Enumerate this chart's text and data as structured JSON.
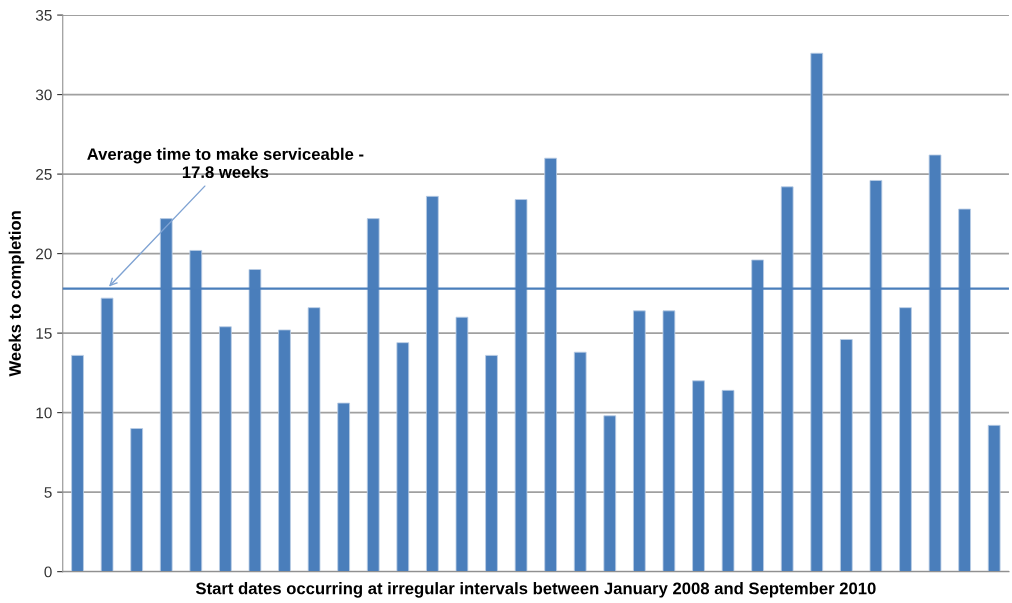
{
  "chart_data": {
    "type": "bar",
    "xlabel": "Start dates occurring at irregular intervals between January 2008 and September 2010",
    "ylabel": "Weeks to completion",
    "categories": [
      null,
      null,
      null,
      null,
      null,
      null,
      null,
      null,
      null,
      null,
      null,
      null,
      null,
      null,
      null,
      null,
      null,
      null,
      null,
      null,
      null,
      null,
      null,
      null,
      null,
      null,
      null,
      null,
      null,
      null,
      null,
      null
    ],
    "values": [
      13.6,
      17.2,
      9.0,
      22.2,
      20.2,
      15.4,
      19.0,
      15.2,
      16.6,
      10.6,
      22.2,
      14.4,
      23.6,
      16.0,
      13.6,
      23.4,
      26.0,
      13.8,
      9.8,
      16.4,
      16.4,
      12.0,
      11.4,
      19.6,
      24.2,
      32.6,
      14.6,
      24.6,
      16.6,
      26.2,
      22.8,
      9.2
    ],
    "color": "#4a7ebb",
    "ylim": [
      0,
      35
    ],
    "yticks": [
      0,
      5,
      10,
      15,
      20,
      25,
      30,
      35
    ],
    "grid": "y",
    "ref_lines": [
      {
        "axis": "y",
        "value": 17.8,
        "label": "Average time to make serviceable -\n17.8 weeks",
        "color": "#4a7ebb",
        "line_style": "solid"
      }
    ]
  }
}
